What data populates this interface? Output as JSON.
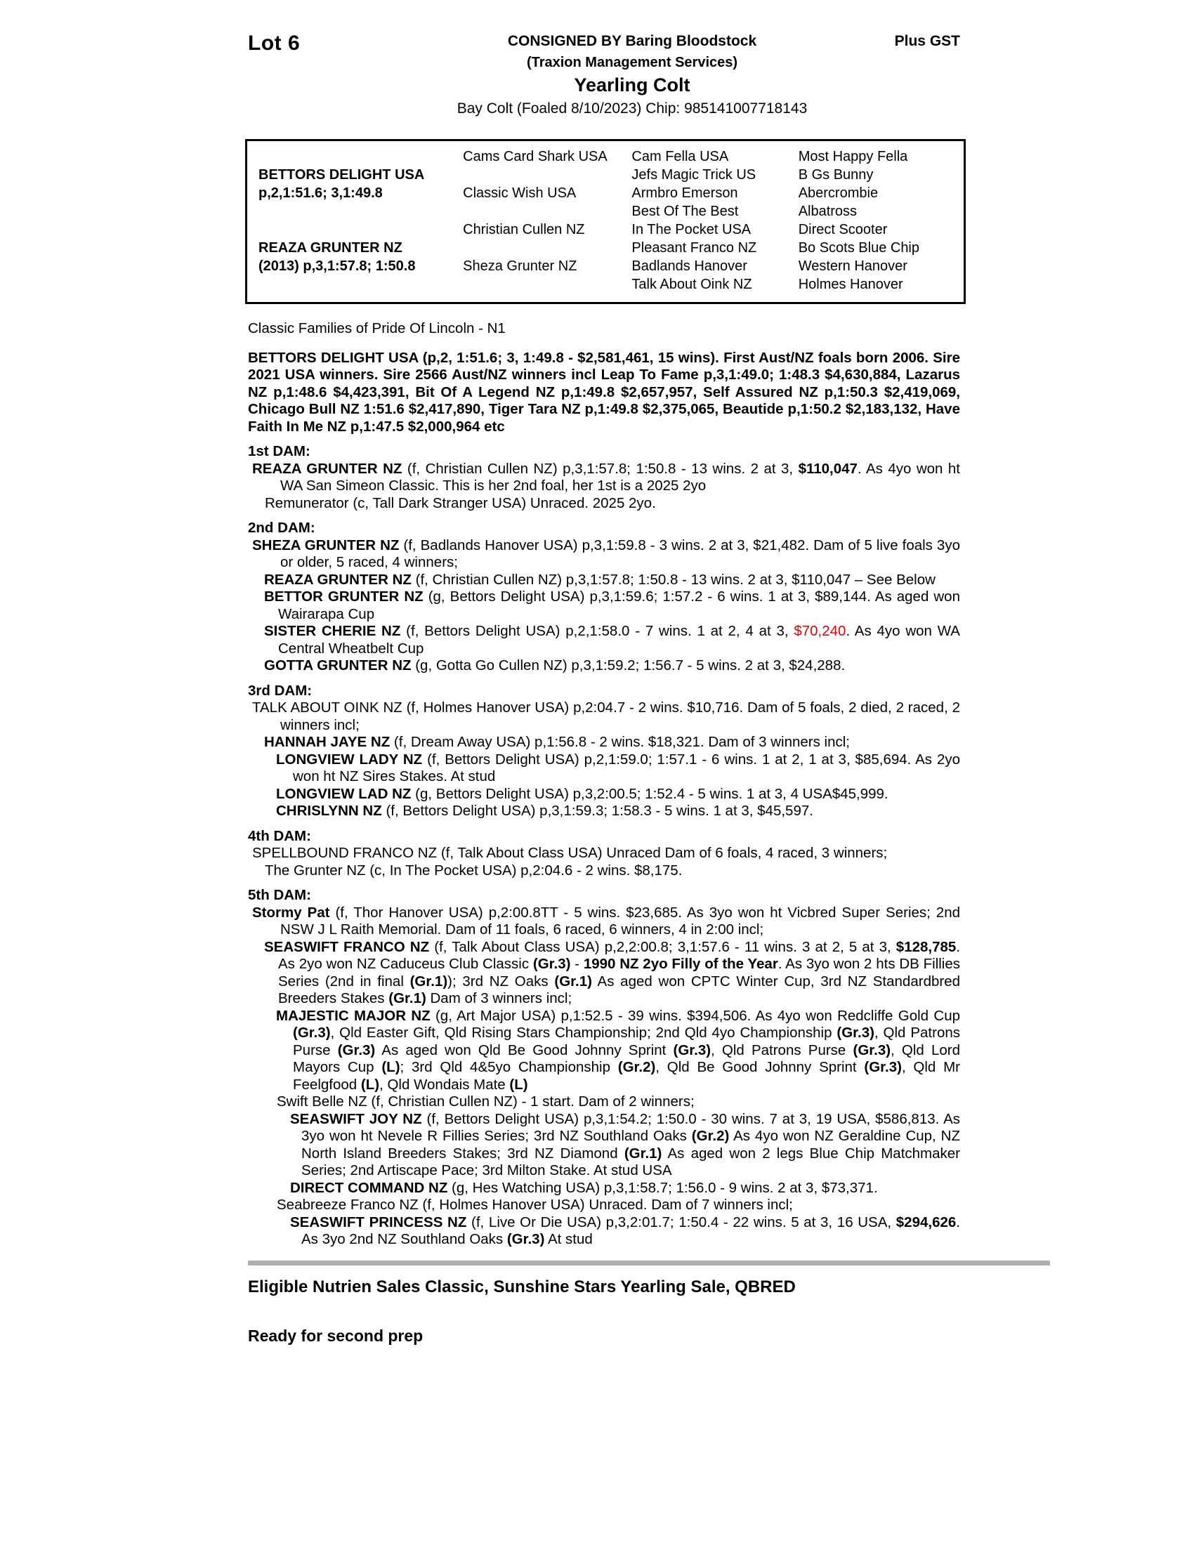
{
  "header": {
    "lot": "Lot 6",
    "consigned_by": "CONSIGNED BY Baring Bloodstock",
    "consignor_sub": "(Traxion Management Services)",
    "lot_type": "Yearling Colt",
    "foal_description": "Bay Colt (Foaled 8/10/2023) Chip: 985141007718143",
    "gst_note": "Plus GST"
  },
  "pedigree_table": {
    "sire": {
      "name": "BETTORS DELIGHT USA",
      "record": "p,2,1:51.6; 3,1:49.8"
    },
    "dam": {
      "name": "REAZA GRUNTER NZ",
      "record": "(2013) p,3,1:57.8; 1:50.8"
    },
    "columns": [
      [
        "",
        "BETTORS DELIGHT USA",
        "p,2,1:51.6; 3,1:49.8",
        "",
        "",
        "REAZA GRUNTER NZ",
        "(2013) p,3,1:57.8; 1:50.8",
        ""
      ],
      [
        "Cams Card Shark USA",
        "",
        "Classic Wish USA",
        "",
        "Christian Cullen NZ",
        "",
        "Sheza Grunter NZ",
        ""
      ],
      [
        "Cam Fella USA",
        "Jefs Magic Trick US",
        "Armbro Emerson",
        "Best Of The Best",
        "In The Pocket USA",
        "Pleasant Franco NZ",
        "Badlands Hanover",
        "Talk About Oink NZ"
      ],
      [
        "Most Happy Fella",
        "B Gs Bunny",
        "Abercrombie",
        "Albatross",
        "Direct Scooter",
        "Bo Scots Blue Chip",
        "Western Hanover",
        "Holmes Hanover"
      ]
    ]
  },
  "classic_families": "Classic Families of Pride Of Lincoln - N1",
  "sire_paragraph": [
    {
      "t": "BETTORS DELIGHT USA (p,2, 1:51.6; 3, 1:49.8 - $2,581,461, 15 wins). First Aust/NZ foals born 2006. Sire 2021 USA winners. Sire 2566 Aust/NZ winners incl Leap To Fame p,3,1:49.0; 1:48.3 $4,630,884, Lazarus NZ p,1:48.6 $4,423,391, Bit Of A Legend NZ p,1:49.8 $2,657,957, Self Assured NZ p,1:50.3 $2,419,069, Chicago Bull NZ 1:51.6 $2,417,890,  Tiger Tara NZ p,1:49.8 $2,375,065, Beautide p,1:50.2 $2,183,132, Have Faith In Me NZ p,1:47.5 $2,000,964 etc",
      "b": true
    }
  ],
  "sections": [
    {
      "heading": "1st DAM:",
      "paragraphs": [
        {
          "style": "l0",
          "segments": [
            {
              "t": "REAZA GRUNTER NZ ",
              "b": true
            },
            {
              "t": "(f, Christian Cullen NZ) p,3,1:57.8; 1:50.8 - 13 wins. 2 at 3, "
            },
            {
              "t": "$110,047",
              "b": true
            },
            {
              "t": ". As 4yo won ht WA San Simeon Classic. This is her 2nd foal, her 1st is a 2025 2yo"
            }
          ]
        },
        {
          "style": "p0",
          "segments": [
            {
              "t": "Remunerator (c, Tall Dark Stranger USA) Unraced. 2025 2yo."
            }
          ]
        }
      ]
    },
    {
      "heading": "2nd DAM:",
      "paragraphs": [
        {
          "style": "l0",
          "segments": [
            {
              "t": "SHEZA GRUNTER NZ ",
              "b": true
            },
            {
              "t": "(f, Badlands Hanover USA) p,3,1:59.8 - 3 wins. 2 at 3, $21,482. Dam of 5 live foals 3yo or older, 5 raced, 4 winners;"
            }
          ]
        },
        {
          "style": "l1",
          "segments": [
            {
              "t": "REAZA GRUNTER NZ ",
              "b": true
            },
            {
              "t": "(f, Christian Cullen NZ) p,3,1:57.8; 1:50.8 - 13 wins. 2 at 3, $110,047 – See Below"
            }
          ]
        },
        {
          "style": "l1",
          "segments": [
            {
              "t": "BETTOR GRUNTER NZ ",
              "b": true
            },
            {
              "t": "(g, Bettors Delight USA) p,3,1:59.6; 1:57.2 - 6 wins. 1 at 3, $89,144. As aged won Wairarapa Cup"
            }
          ]
        },
        {
          "style": "l1",
          "segments": [
            {
              "t": "SISTER CHERIE NZ ",
              "b": true
            },
            {
              "t": "(f, Bettors Delight USA) p,2,1:58.0 - 7 wins. 1 at 2, 4 at 3, "
            },
            {
              "t": "$70,240",
              "r": true
            },
            {
              "t": ". As 4yo won WA Central Wheatbelt Cup"
            }
          ]
        },
        {
          "style": "l1",
          "segments": [
            {
              "t": "GOTTA GRUNTER NZ ",
              "b": true
            },
            {
              "t": "(g, Gotta Go Cullen NZ) p,3,1:59.2; 1:56.7 - 5 wins. 2 at 3, $24,288."
            }
          ]
        }
      ]
    },
    {
      "heading": "3rd DAM:",
      "paragraphs": [
        {
          "style": "l0",
          "segments": [
            {
              "t": "TALK ABOUT OINK NZ (f, Holmes Hanover USA) p,2:04.7 - 2 wins. $10,716. Dam of 5 foals, 2 died, 2 raced, 2 winners incl;"
            }
          ]
        },
        {
          "style": "l1",
          "segments": [
            {
              "t": "HANNAH JAYE NZ ",
              "b": true
            },
            {
              "t": "(f, Dream Away USA) p,1:56.8 - 2 wins. $18,321. Dam of 3 winners incl;"
            }
          ]
        },
        {
          "style": "l2",
          "segments": [
            {
              "t": "LONGVIEW LADY NZ ",
              "b": true
            },
            {
              "t": "(f, Bettors Delight USA) p,2,1:59.0; 1:57.1 - 6 wins. 1 at 2, 1 at 3, $85,694. As 2yo won ht NZ Sires Stakes. At stud"
            }
          ]
        },
        {
          "style": "l2",
          "segments": [
            {
              "t": "LONGVIEW LAD NZ ",
              "b": true
            },
            {
              "t": "(g, Bettors Delight USA) p,3,2:00.5; 1:52.4 - 5 wins. 1 at 3, 4 USA$45,999."
            }
          ]
        },
        {
          "style": "l2",
          "segments": [
            {
              "t": "CHRISLYNN NZ ",
              "b": true
            },
            {
              "t": "(f, Bettors Delight USA) p,3,1:59.3; 1:58.3 - 5 wins. 1 at 3, $45,597."
            }
          ]
        }
      ]
    },
    {
      "heading": "4th DAM:",
      "paragraphs": [
        {
          "style": "l0",
          "segments": [
            {
              "t": "SPELLBOUND FRANCO NZ (f, Talk About Class USA) Unraced Dam of 6 foals, 4 raced, 3 winners;"
            }
          ]
        },
        {
          "style": "p0",
          "segments": [
            {
              "t": "The Grunter NZ (c, In The Pocket USA) p,2:04.6 - 2 wins. $8,175."
            }
          ]
        }
      ]
    },
    {
      "heading": "5th DAM:",
      "paragraphs": [
        {
          "style": "l0",
          "segments": [
            {
              "t": "Stormy Pat ",
              "b": true
            },
            {
              "t": "(f, Thor Hanover USA) p,2:00.8TT - 5 wins. $23,685. As 3yo won ht Vicbred Super Series; 2nd NSW J L Raith Memorial. Dam of 11 foals, 6 raced, 6 winners, 4 in 2:00 incl;"
            }
          ]
        },
        {
          "style": "l1",
          "segments": [
            {
              "t": "SEASWIFT FRANCO NZ ",
              "b": true
            },
            {
              "t": "(f, Talk About Class USA) p,2,2:00.8; 3,1:57.6 - 11 wins. 3 at 2, 5 at 3, "
            },
            {
              "t": "$128,785",
              "b": true
            },
            {
              "t": ". As 2yo won NZ Caduceus Club Classic "
            },
            {
              "t": "(Gr.3)",
              "b": true
            },
            {
              "t": " - "
            },
            {
              "t": "1990 NZ 2yo Filly of the Year",
              "b": true
            },
            {
              "t": ". As 3yo won 2 hts DB Fillies Series (2nd in final "
            },
            {
              "t": "(Gr.1)",
              "b": true
            },
            {
              "t": "); 3rd NZ Oaks "
            },
            {
              "t": "(Gr.1)",
              "b": true
            },
            {
              "t": " As aged won CPTC Winter Cup, 3rd NZ Standardbred Breeders Stakes "
            },
            {
              "t": "(Gr.1)",
              "b": true
            },
            {
              "t": " Dam of 3 winners incl;"
            }
          ]
        },
        {
          "style": "l2",
          "segments": [
            {
              "t": "MAJESTIC MAJOR NZ ",
              "b": true
            },
            {
              "t": "(g, Art Major USA) p,1:52.5 - 39 wins. $394,506. As 4yo won Redcliffe Gold Cup "
            },
            {
              "t": "(Gr.3)",
              "b": true
            },
            {
              "t": ", Qld Easter Gift, Qld Rising Stars Championship; 2nd Qld 4yo Championship "
            },
            {
              "t": "(Gr.3)",
              "b": true
            },
            {
              "t": ", Qld Patrons Purse "
            },
            {
              "t": "(Gr.3)",
              "b": true
            },
            {
              "t": " As aged won Qld Be Good Johnny Sprint "
            },
            {
              "t": "(Gr.3)",
              "b": true
            },
            {
              "t": ", Qld Patrons Purse "
            },
            {
              "t": "(Gr.3)",
              "b": true
            },
            {
              "t": ", Qld Lord Mayors Cup "
            },
            {
              "t": "(L)",
              "b": true
            },
            {
              "t": "; 3rd Qld 4&5yo Championship "
            },
            {
              "t": "(Gr.2)",
              "b": true
            },
            {
              "t": ", Qld Be Good Johnny Sprint "
            },
            {
              "t": "(Gr.3)",
              "b": true
            },
            {
              "t": ", Qld Mr Feelgfood "
            },
            {
              "t": "(L)",
              "b": true
            },
            {
              "t": ", Qld Wondais Mate "
            },
            {
              "t": "(L)",
              "b": true
            }
          ]
        },
        {
          "style": "f2",
          "segments": [
            {
              "t": "Swift Belle NZ (f, Christian Cullen NZ) - 1 start. Dam of 2 winners;"
            }
          ]
        },
        {
          "style": "l3",
          "segments": [
            {
              "t": "SEASWIFT JOY NZ ",
              "b": true
            },
            {
              "t": "(f, Bettors Delight USA) p,3,1:54.2; 1:50.0 - 30 wins. 7 at 3, 19 USA, $586,813. As 3yo won ht Nevele R Fillies Series; 3rd NZ Southland Oaks "
            },
            {
              "t": "(Gr.2)",
              "b": true
            },
            {
              "t": " As 4yo won NZ Geraldine Cup, NZ North Island Breeders Stakes; 3rd NZ Diamond "
            },
            {
              "t": "(Gr.1)",
              "b": true
            },
            {
              "t": " As aged won 2 legs Blue Chip Matchmaker Series; 2nd Artiscape Pace; 3rd Milton Stake. At stud USA"
            }
          ]
        },
        {
          "style": "l3",
          "segments": [
            {
              "t": "DIRECT COMMAND NZ ",
              "b": true
            },
            {
              "t": "(g, Hes Watching USA) p,3,1:58.7; 1:56.0 - 9 wins. 2 at 3, $73,371."
            }
          ]
        },
        {
          "style": "f2",
          "segments": [
            {
              "t": "Seabreeze Franco NZ (f, Holmes Hanover USA) Unraced. Dam of 7 winners incl;"
            }
          ]
        },
        {
          "style": "l3",
          "segments": [
            {
              "t": "SEASWIFT PRINCESS NZ ",
              "b": true
            },
            {
              "t": "(f, Live Or Die USA) p,3,2:01.7; 1:50.4 - 22 wins. 5 at 3, 16 USA, "
            },
            {
              "t": "$294,626",
              "b": true
            },
            {
              "t": ". As 3yo 2nd NZ Southland Oaks "
            },
            {
              "t": "(Gr.3)",
              "b": true
            },
            {
              "t": " At stud"
            }
          ]
        }
      ]
    }
  ],
  "footer": {
    "eligible": "Eligible Nutrien Sales Classic, Sunshine Stars Yearling Sale, QBRED",
    "ready": "Ready for second prep"
  },
  "colors": {
    "highlight_red": "#e00000",
    "divider_gray": "#b0b0b0",
    "text_black": "#000000"
  }
}
